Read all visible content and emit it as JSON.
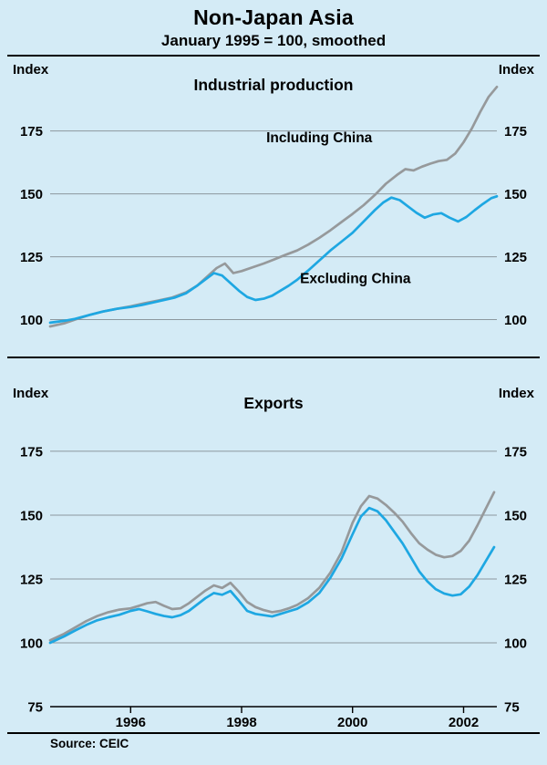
{
  "page": {
    "title": "Non-Japan Asia",
    "subtitle": "January 1995 = 100, smoothed",
    "source": "Source: CEIC"
  },
  "colors": {
    "background": "#d4ebf6",
    "grid": "#8c979e",
    "axis": "#000000",
    "text": "#000000",
    "series": {
      "including_china": "#96999b",
      "excluding_china": "#1ea7e2"
    }
  },
  "chart_data": [
    {
      "type": "line",
      "panel_title": "Industrial production",
      "index_label_left": "Index",
      "index_label_right": "Index",
      "xlim": [
        1994.55,
        2002.6
      ],
      "ylim": [
        85.7,
        204.2
      ],
      "yticks": [
        100,
        125,
        150,
        175
      ],
      "gridlines": [
        100,
        125,
        150,
        175
      ],
      "xticks": [],
      "show_x_axis": false,
      "legend_position": "inline-annotations",
      "grid": true,
      "series": [
        {
          "name": "Including China",
          "color": "including_china",
          "x": [
            1994.55,
            1994.8,
            1995,
            1995.25,
            1995.5,
            1995.75,
            1996,
            1996.25,
            1996.5,
            1996.75,
            1997,
            1997.2,
            1997.4,
            1997.55,
            1997.7,
            1997.85,
            1998,
            1998.2,
            1998.4,
            1998.6,
            1998.8,
            1999,
            1999.2,
            1999.4,
            1999.6,
            1999.8,
            2000,
            2000.2,
            2000.4,
            2000.6,
            2000.8,
            2000.95,
            2001.1,
            2001.25,
            2001.4,
            2001.55,
            2001.7,
            2001.85,
            2002,
            2002.15,
            2002.3,
            2002.45,
            2002.6
          ],
          "y": [
            97.3,
            98.5,
            100,
            101.8,
            103.2,
            104.3,
            105.3,
            106.5,
            107.6,
            108.8,
            110.8,
            113.5,
            117.5,
            120.5,
            122.3,
            118.5,
            119.3,
            120.8,
            122.3,
            124,
            125.8,
            127.5,
            129.8,
            132.5,
            135.5,
            138.8,
            142,
            145.5,
            149.5,
            154,
            157.5,
            159.8,
            159.3,
            160.8,
            162,
            163,
            163.5,
            166,
            170.5,
            176,
            182.5,
            188.5,
            192.5
          ]
        },
        {
          "name": "Excluding China",
          "color": "excluding_china",
          "x": [
            1994.55,
            1994.8,
            1995,
            1995.25,
            1995.5,
            1995.75,
            1996,
            1996.2,
            1996.4,
            1996.6,
            1996.8,
            1997,
            1997.2,
            1997.35,
            1997.5,
            1997.65,
            1997.8,
            1997.95,
            1998.1,
            1998.25,
            1998.4,
            1998.55,
            1998.7,
            1998.85,
            1999,
            1999.2,
            1999.4,
            1999.6,
            1999.8,
            2000,
            2000.2,
            2000.4,
            2000.55,
            2000.7,
            2000.85,
            2001,
            2001.15,
            2001.3,
            2001.45,
            2001.6,
            2001.75,
            2001.9,
            2002.05,
            2002.2,
            2002.35,
            2002.5,
            2002.6
          ],
          "y": [
            98.8,
            99.5,
            100.3,
            101.8,
            103.2,
            104.3,
            105,
            105.8,
            106.8,
            107.8,
            108.8,
            110.5,
            113.5,
            116,
            118.5,
            117.5,
            114.5,
            111.5,
            109,
            107.8,
            108.3,
            109.5,
            111.5,
            113.5,
            115.8,
            119.5,
            123.5,
            127.5,
            131,
            134.5,
            139,
            143.5,
            146.5,
            148.5,
            147.5,
            145,
            142.5,
            140.5,
            141.8,
            142.3,
            140.5,
            139,
            140.8,
            143.5,
            146,
            148.3,
            149
          ]
        }
      ],
      "annotations": [
        {
          "text": "Including China",
          "x": 1999.4,
          "y": 170.5
        },
        {
          "text": "Excluding China",
          "x": 2000.05,
          "y": 114.5
        }
      ]
    },
    {
      "type": "line",
      "panel_title": "Exports",
      "index_label_left": "Index",
      "index_label_right": "Index",
      "xlim": [
        1994.55,
        2002.6
      ],
      "ylim": [
        75,
        211.4
      ],
      "yticks": [
        75,
        100,
        125,
        150,
        175
      ],
      "gridlines": [
        100,
        125,
        150,
        175
      ],
      "xticks": [
        1996,
        1998,
        2000,
        2002
      ],
      "show_x_axis": true,
      "legend_position": "none",
      "grid": true,
      "series": [
        {
          "name": "Including China",
          "color": "including_china",
          "x": [
            1994.55,
            1994.8,
            1995,
            1995.2,
            1995.4,
            1995.6,
            1995.8,
            1996,
            1996.15,
            1996.3,
            1996.45,
            1996.6,
            1996.75,
            1996.9,
            1997.05,
            1997.2,
            1997.35,
            1997.5,
            1997.65,
            1997.8,
            1997.95,
            1998.1,
            1998.25,
            1998.4,
            1998.55,
            1998.7,
            1998.85,
            1999,
            1999.2,
            1999.4,
            1999.6,
            1999.8,
            2000,
            2000.15,
            2000.3,
            2000.45,
            2000.6,
            2000.75,
            2000.9,
            2001.05,
            2001.2,
            2001.35,
            2001.5,
            2001.65,
            2001.8,
            2001.95,
            2002.1,
            2002.25,
            2002.4,
            2002.55
          ],
          "y": [
            101,
            103.5,
            106,
            108.5,
            110.5,
            112,
            113,
            113.5,
            114.5,
            115.5,
            116,
            114.5,
            113.2,
            113.5,
            115.5,
            118,
            120.5,
            122.5,
            121.5,
            123.5,
            120,
            116,
            114,
            112.8,
            112,
            112.5,
            113.5,
            114.8,
            117.5,
            121.5,
            127.5,
            135.5,
            147,
            153.5,
            157.5,
            156.5,
            154,
            151,
            147.5,
            143,
            139,
            136.5,
            134.5,
            133.5,
            134,
            136,
            140,
            146,
            152.5,
            159
          ]
        },
        {
          "name": "Excluding China",
          "color": "excluding_china",
          "x": [
            1994.55,
            1994.8,
            1995,
            1995.2,
            1995.4,
            1995.6,
            1995.8,
            1996,
            1996.15,
            1996.3,
            1996.45,
            1996.6,
            1996.75,
            1996.9,
            1997.05,
            1997.2,
            1997.35,
            1997.5,
            1997.65,
            1997.8,
            1997.95,
            1998.1,
            1998.25,
            1998.4,
            1998.55,
            1998.7,
            1998.85,
            1999,
            1999.2,
            1999.4,
            1999.6,
            1999.8,
            2000,
            2000.15,
            2000.3,
            2000.45,
            2000.6,
            2000.75,
            2000.9,
            2001.05,
            2001.2,
            2001.35,
            2001.5,
            2001.65,
            2001.8,
            2001.95,
            2002.1,
            2002.25,
            2002.4,
            2002.55
          ],
          "y": [
            100,
            102.5,
            104.8,
            107,
            108.8,
            110,
            111,
            112.5,
            113.2,
            112.3,
            111.3,
            110.5,
            110,
            110.8,
            112.5,
            115,
            117.5,
            119.5,
            118.8,
            120.3,
            116.5,
            112.5,
            111.3,
            110.8,
            110.3,
            111.3,
            112.3,
            113.3,
            115.8,
            119.5,
            125.5,
            133,
            142.5,
            149.5,
            152.8,
            151.5,
            148,
            143.5,
            139,
            133.5,
            128,
            124,
            121,
            119.3,
            118.5,
            119,
            122,
            126.5,
            132,
            137.5
          ]
        }
      ],
      "annotations": []
    }
  ]
}
